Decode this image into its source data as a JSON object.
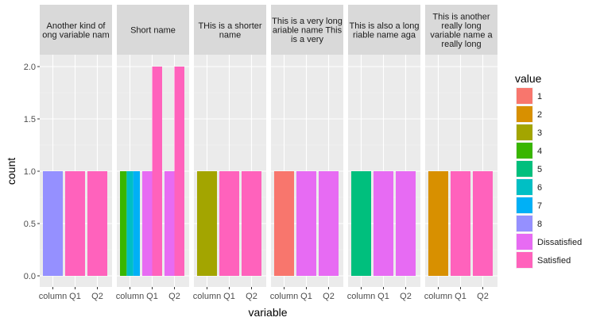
{
  "chart_data": {
    "type": "bar",
    "xlabel": "variable",
    "ylabel": "count",
    "ylim": [
      0,
      2.0
    ],
    "y_ticks": [
      "0.0",
      "0.5",
      "1.0",
      "1.5",
      "2.0"
    ],
    "y_tick_values": [
      0,
      0.5,
      1.0,
      1.5,
      2.0
    ],
    "categories": [
      "column",
      "Q1",
      "Q2"
    ],
    "grid": true,
    "legend": {
      "title": "value",
      "position": "right",
      "entries": [
        {
          "label": "1",
          "color": "#F8766D"
        },
        {
          "label": "2",
          "color": "#D89000"
        },
        {
          "label": "3",
          "color": "#A3A500"
        },
        {
          "label": "4",
          "color": "#39B600"
        },
        {
          "label": "5",
          "color": "#00BF7D"
        },
        {
          "label": "6",
          "color": "#00BFC4"
        },
        {
          "label": "7",
          "color": "#00B0F6"
        },
        {
          "label": "8",
          "color": "#9590FF"
        },
        {
          "label": "Dissatisfied",
          "color": "#E76BF3"
        },
        {
          "label": "Satisfied",
          "color": "#FF62BC"
        }
      ]
    },
    "panels": [
      {
        "strip_lines": [
          "Another kind of",
          "ong variable nam"
        ],
        "bars": [
          {
            "category": "column",
            "segments": [
              {
                "value": "8",
                "count": 1
              }
            ]
          },
          {
            "category": "Q1",
            "segments": [
              {
                "value": "Satisfied",
                "count": 1
              }
            ]
          },
          {
            "category": "Q2",
            "segments": [
              {
                "value": "Satisfied",
                "count": 1
              }
            ]
          }
        ]
      },
      {
        "strip_lines": [
          "Short name"
        ],
        "bars": [
          {
            "category": "column",
            "segments": [
              {
                "value": "4",
                "count": 1
              },
              {
                "value": "6",
                "count": 1
              },
              {
                "value": "7",
                "count": 1
              }
            ]
          },
          {
            "category": "Q1",
            "segments": [
              {
                "value": "Dissatisfied",
                "count": 1
              },
              {
                "value": "Satisfied",
                "count": 2
              }
            ]
          },
          {
            "category": "Q2",
            "segments": [
              {
                "value": "Dissatisfied",
                "count": 1
              },
              {
                "value": "Satisfied",
                "count": 2
              }
            ]
          }
        ]
      },
      {
        "strip_lines": [
          "THis is a shorter",
          "name"
        ],
        "bars": [
          {
            "category": "column",
            "segments": [
              {
                "value": "3",
                "count": 1
              }
            ]
          },
          {
            "category": "Q1",
            "segments": [
              {
                "value": "Satisfied",
                "count": 1
              }
            ]
          },
          {
            "category": "Q2",
            "segments": [
              {
                "value": "Satisfied",
                "count": 1
              }
            ]
          }
        ]
      },
      {
        "strip_lines": [
          "This is a very long",
          "ariable name This",
          "is a very"
        ],
        "bars": [
          {
            "category": "column",
            "segments": [
              {
                "value": "1",
                "count": 1
              }
            ]
          },
          {
            "category": "Q1",
            "segments": [
              {
                "value": "Dissatisfied",
                "count": 1
              }
            ]
          },
          {
            "category": "Q2",
            "segments": [
              {
                "value": "Dissatisfied",
                "count": 1
              }
            ]
          }
        ]
      },
      {
        "strip_lines": [
          "This is also a long",
          "riable name aga"
        ],
        "bars": [
          {
            "category": "column",
            "segments": [
              {
                "value": "5",
                "count": 1
              }
            ]
          },
          {
            "category": "Q1",
            "segments": [
              {
                "value": "Dissatisfied",
                "count": 1
              }
            ]
          },
          {
            "category": "Q2",
            "segments": [
              {
                "value": "Dissatisfied",
                "count": 1
              }
            ]
          }
        ]
      },
      {
        "strip_lines": [
          "This is another",
          "really long",
          "variable name a",
          "really long"
        ],
        "bars": [
          {
            "category": "column",
            "segments": [
              {
                "value": "2",
                "count": 1
              }
            ]
          },
          {
            "category": "Q1",
            "segments": [
              {
                "value": "Satisfied",
                "count": 1
              }
            ]
          },
          {
            "category": "Q2",
            "segments": [
              {
                "value": "Satisfied",
                "count": 1
              }
            ]
          }
        ]
      }
    ]
  }
}
